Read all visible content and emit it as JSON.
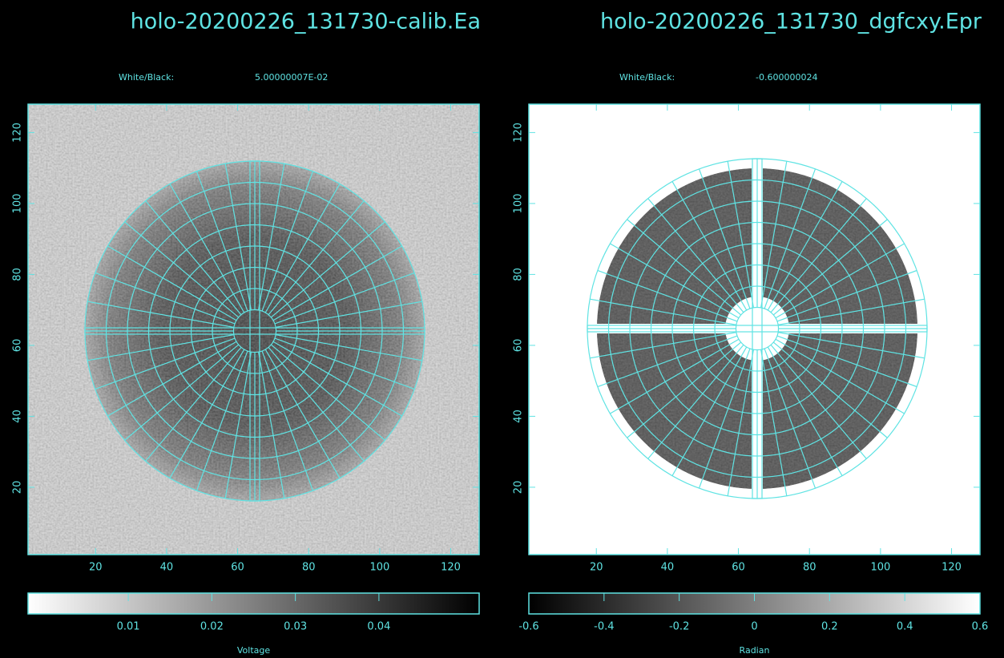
{
  "chart_data": [
    {
      "type": "image",
      "title": "holo-20200226_131730-calib.Ea",
      "scale_label": "White/Black:",
      "scale_value": "5.00000007E-02",
      "xlim": [
        1,
        128
      ],
      "ylim": [
        1,
        128
      ],
      "xticks": [
        20,
        40,
        60,
        80,
        100,
        120
      ],
      "yticks": [
        20,
        40,
        60,
        80,
        100,
        120
      ],
      "colorbar": {
        "label": "Voltage",
        "lim": [
          -0.002,
          0.052
        ],
        "ticks": [
          0.01,
          0.02,
          0.03,
          0.04
        ],
        "colors": [
          "#ffffff",
          "#000000"
        ]
      }
    },
    {
      "type": "image",
      "title": "holo-20200226_131730_dgfcxy.Epr",
      "scale_label": "White/Black:",
      "scale_value": "-0.600000024",
      "xlim": [
        1,
        128
      ],
      "ylim": [
        1,
        128
      ],
      "xticks": [
        20,
        40,
        60,
        80,
        100,
        120
      ],
      "yticks": [
        20,
        40,
        60,
        80,
        100,
        120
      ],
      "colorbar": {
        "label": "Radian",
        "lim": [
          -0.6,
          0.6
        ],
        "ticks": [
          -0.6,
          -0.4,
          -0.2,
          0,
          0.2,
          0.4,
          0.6
        ],
        "colors": [
          "#000000",
          "#ffffff"
        ]
      }
    }
  ]
}
